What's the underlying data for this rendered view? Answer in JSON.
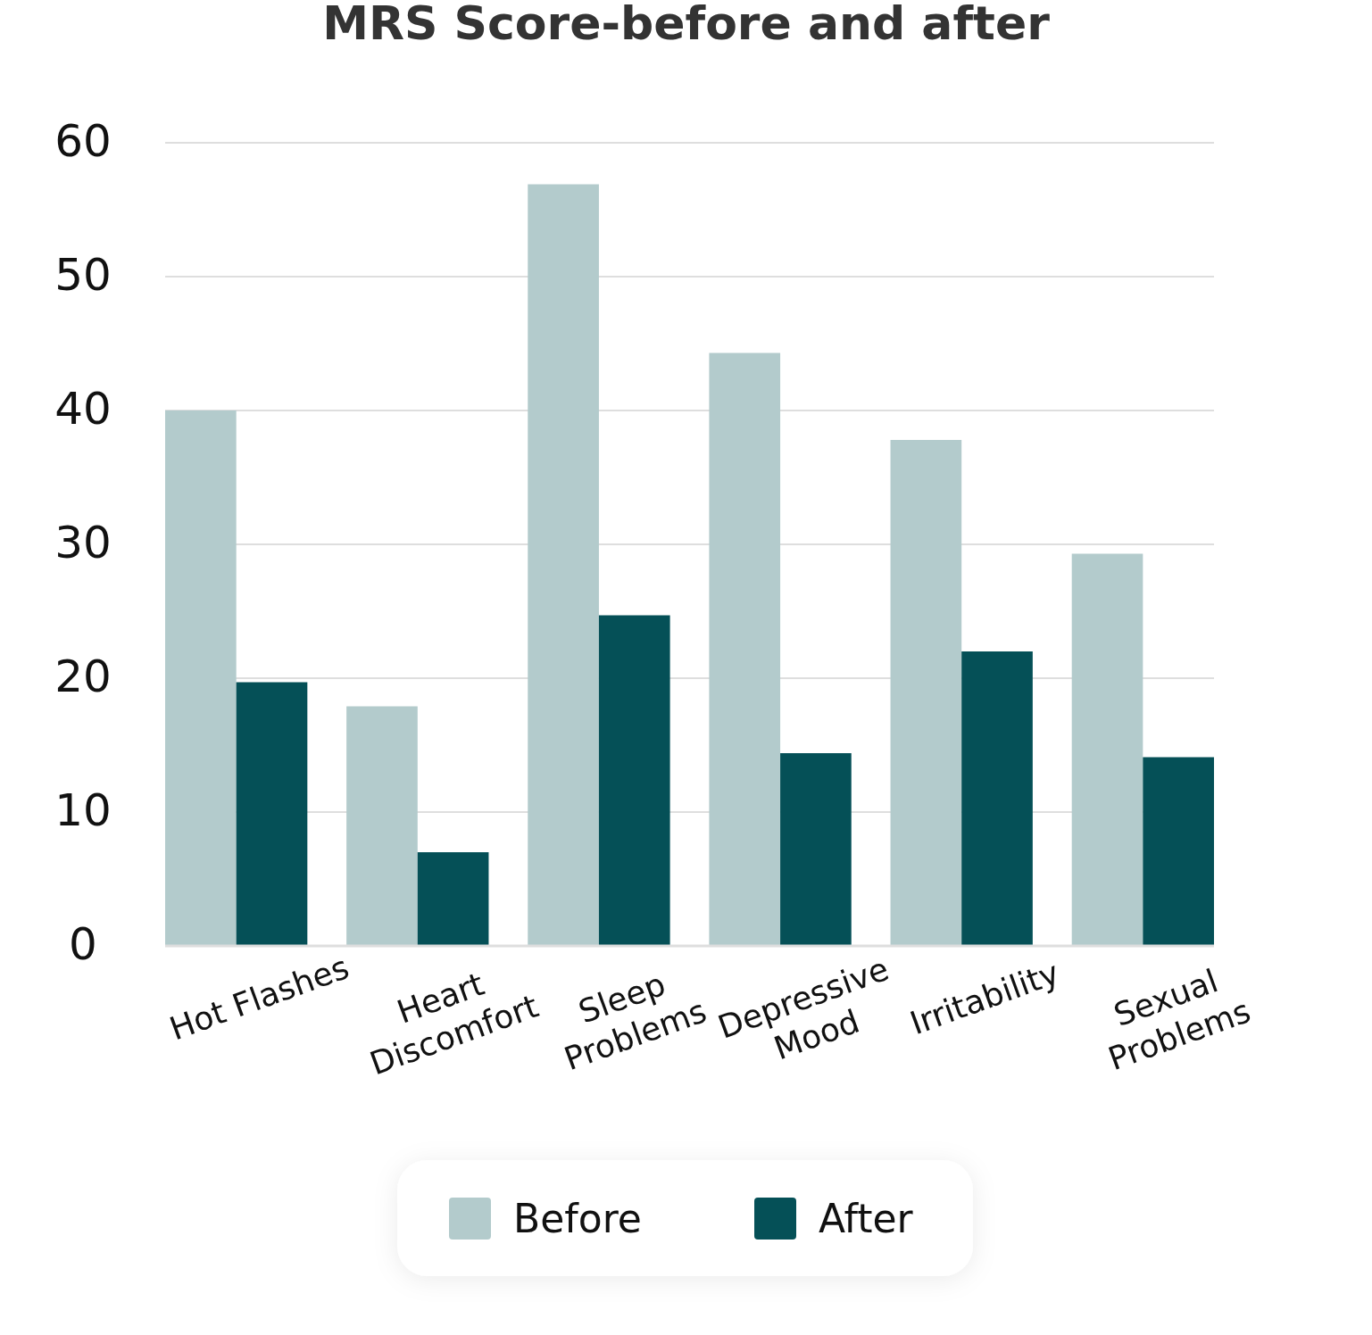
{
  "chart_data": {
    "type": "bar",
    "title": "MRS Score-before and after",
    "categories": [
      "Hot Flashes",
      "Heart Discomfort",
      "Sleep Problems",
      "Depressive Mood",
      "Irritability",
      "Sexual Problems"
    ],
    "series": [
      {
        "name": "Before",
        "color": "#b3cbcc",
        "values": [
          40,
          17.9,
          56.9,
          44.3,
          37.8,
          29.3
        ]
      },
      {
        "name": "After",
        "color": "#055057",
        "values": [
          19.7,
          7,
          24.7,
          14.4,
          22,
          14.1
        ]
      }
    ],
    "ylim": [
      0,
      60
    ],
    "yticks": [
      0,
      10,
      20,
      30,
      40,
      50,
      60
    ],
    "grid": "y",
    "legend": "bottom"
  }
}
